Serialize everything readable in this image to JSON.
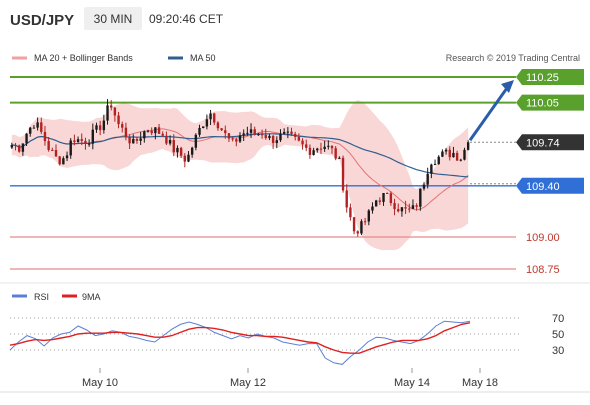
{
  "header": {
    "symbol": "USD/JPY",
    "timeframe": "30 MIN",
    "time": "09:20:46 CET"
  },
  "legend": {
    "ma20_bb_label": "MA 20 + Bollinger Bands",
    "ma50_label": "MA 50",
    "copyright": "Research © 2019 Trading Central"
  },
  "indicator_legend": {
    "rsi_label": "RSI",
    "ma9_label": "9MA"
  },
  "colors": {
    "up_candle": "#1a1a1a",
    "down_candle": "#b22222",
    "bollinger_band": "#f7c9c9",
    "ma20": "#e57373",
    "ma50": "#2f5f8f",
    "resistance": "#5aa02c",
    "pivot": "#2f6fd6",
    "support": "#e68a8a",
    "current_price": "#333333",
    "arrow": "#2a5ea8",
    "rsi": "#5b7fd6",
    "rsi_ma9": "#e02020"
  },
  "chart_data": [
    {
      "type": "candlestick",
      "title": "USD/JPY",
      "x_tick_labels": [
        "May 10",
        "May 12",
        "May 14",
        "May 18"
      ],
      "ylim": [
        108.6,
        110.35
      ],
      "y_tick_labels": [
        "110.25",
        "110.05",
        "109.74",
        "109.40",
        "109.00",
        "108.75"
      ],
      "levels": [
        {
          "value": 110.25,
          "label": "110.25",
          "kind": "resistance"
        },
        {
          "value": 110.05,
          "label": "110.05",
          "kind": "resistance"
        },
        {
          "value": 109.74,
          "label": "109.74",
          "kind": "current"
        },
        {
          "value": 109.4,
          "label": "109.40",
          "kind": "pivot"
        },
        {
          "value": 109.0,
          "label": "109.00",
          "kind": "support"
        },
        {
          "value": 108.75,
          "label": "108.75",
          "kind": "support"
        }
      ],
      "price_path": [
        109.72,
        109.7,
        109.82,
        109.9,
        109.8,
        109.68,
        109.6,
        109.62,
        109.78,
        109.75,
        109.76,
        109.82,
        109.9,
        110.05,
        109.88,
        109.8,
        109.72,
        109.8,
        109.85,
        109.83,
        109.8,
        109.7,
        109.65,
        109.6,
        109.75,
        109.88,
        109.98,
        109.9,
        109.8,
        109.72,
        109.8,
        109.82,
        109.8,
        109.82,
        109.76,
        109.78,
        109.79,
        109.76,
        109.72,
        109.68,
        109.7,
        109.72,
        109.68,
        109.6,
        109.25,
        109.05,
        109.08,
        109.18,
        109.3,
        109.32,
        109.28,
        109.22,
        109.2,
        109.22,
        109.4,
        109.6,
        109.62,
        109.65,
        109.66,
        109.62,
        109.74
      ],
      "trend_forecast": {
        "from": 109.74,
        "to": 110.25
      }
    },
    {
      "type": "line",
      "title": "RSI",
      "ylim": [
        0,
        100
      ],
      "y_ticks": [
        70,
        50,
        30
      ],
      "series": [
        {
          "name": "RSI",
          "values": [
            30,
            40,
            48,
            44,
            35,
            45,
            50,
            52,
            60,
            55,
            48,
            50,
            54,
            52,
            47,
            45,
            42,
            40,
            48,
            56,
            62,
            65,
            62,
            58,
            52,
            48,
            44,
            48,
            45,
            50,
            47,
            45,
            40,
            38,
            36,
            38,
            38,
            20,
            14,
            12,
            22,
            30,
            40,
            46,
            45,
            42,
            40,
            38,
            42,
            50,
            60,
            66,
            65,
            64,
            66
          ]
        },
        {
          "name": "9MA",
          "values": [
            36,
            38,
            41,
            43,
            42,
            43,
            45,
            47,
            50,
            51,
            51,
            51,
            52,
            52,
            51,
            50,
            48,
            46,
            46,
            48,
            52,
            56,
            58,
            58,
            57,
            55,
            52,
            50,
            48,
            48,
            47,
            47,
            46,
            44,
            42,
            40,
            39,
            34,
            30,
            27,
            26,
            26,
            30,
            34,
            37,
            40,
            42,
            42,
            42,
            44,
            48,
            54,
            58,
            62,
            64
          ]
        }
      ]
    }
  ]
}
